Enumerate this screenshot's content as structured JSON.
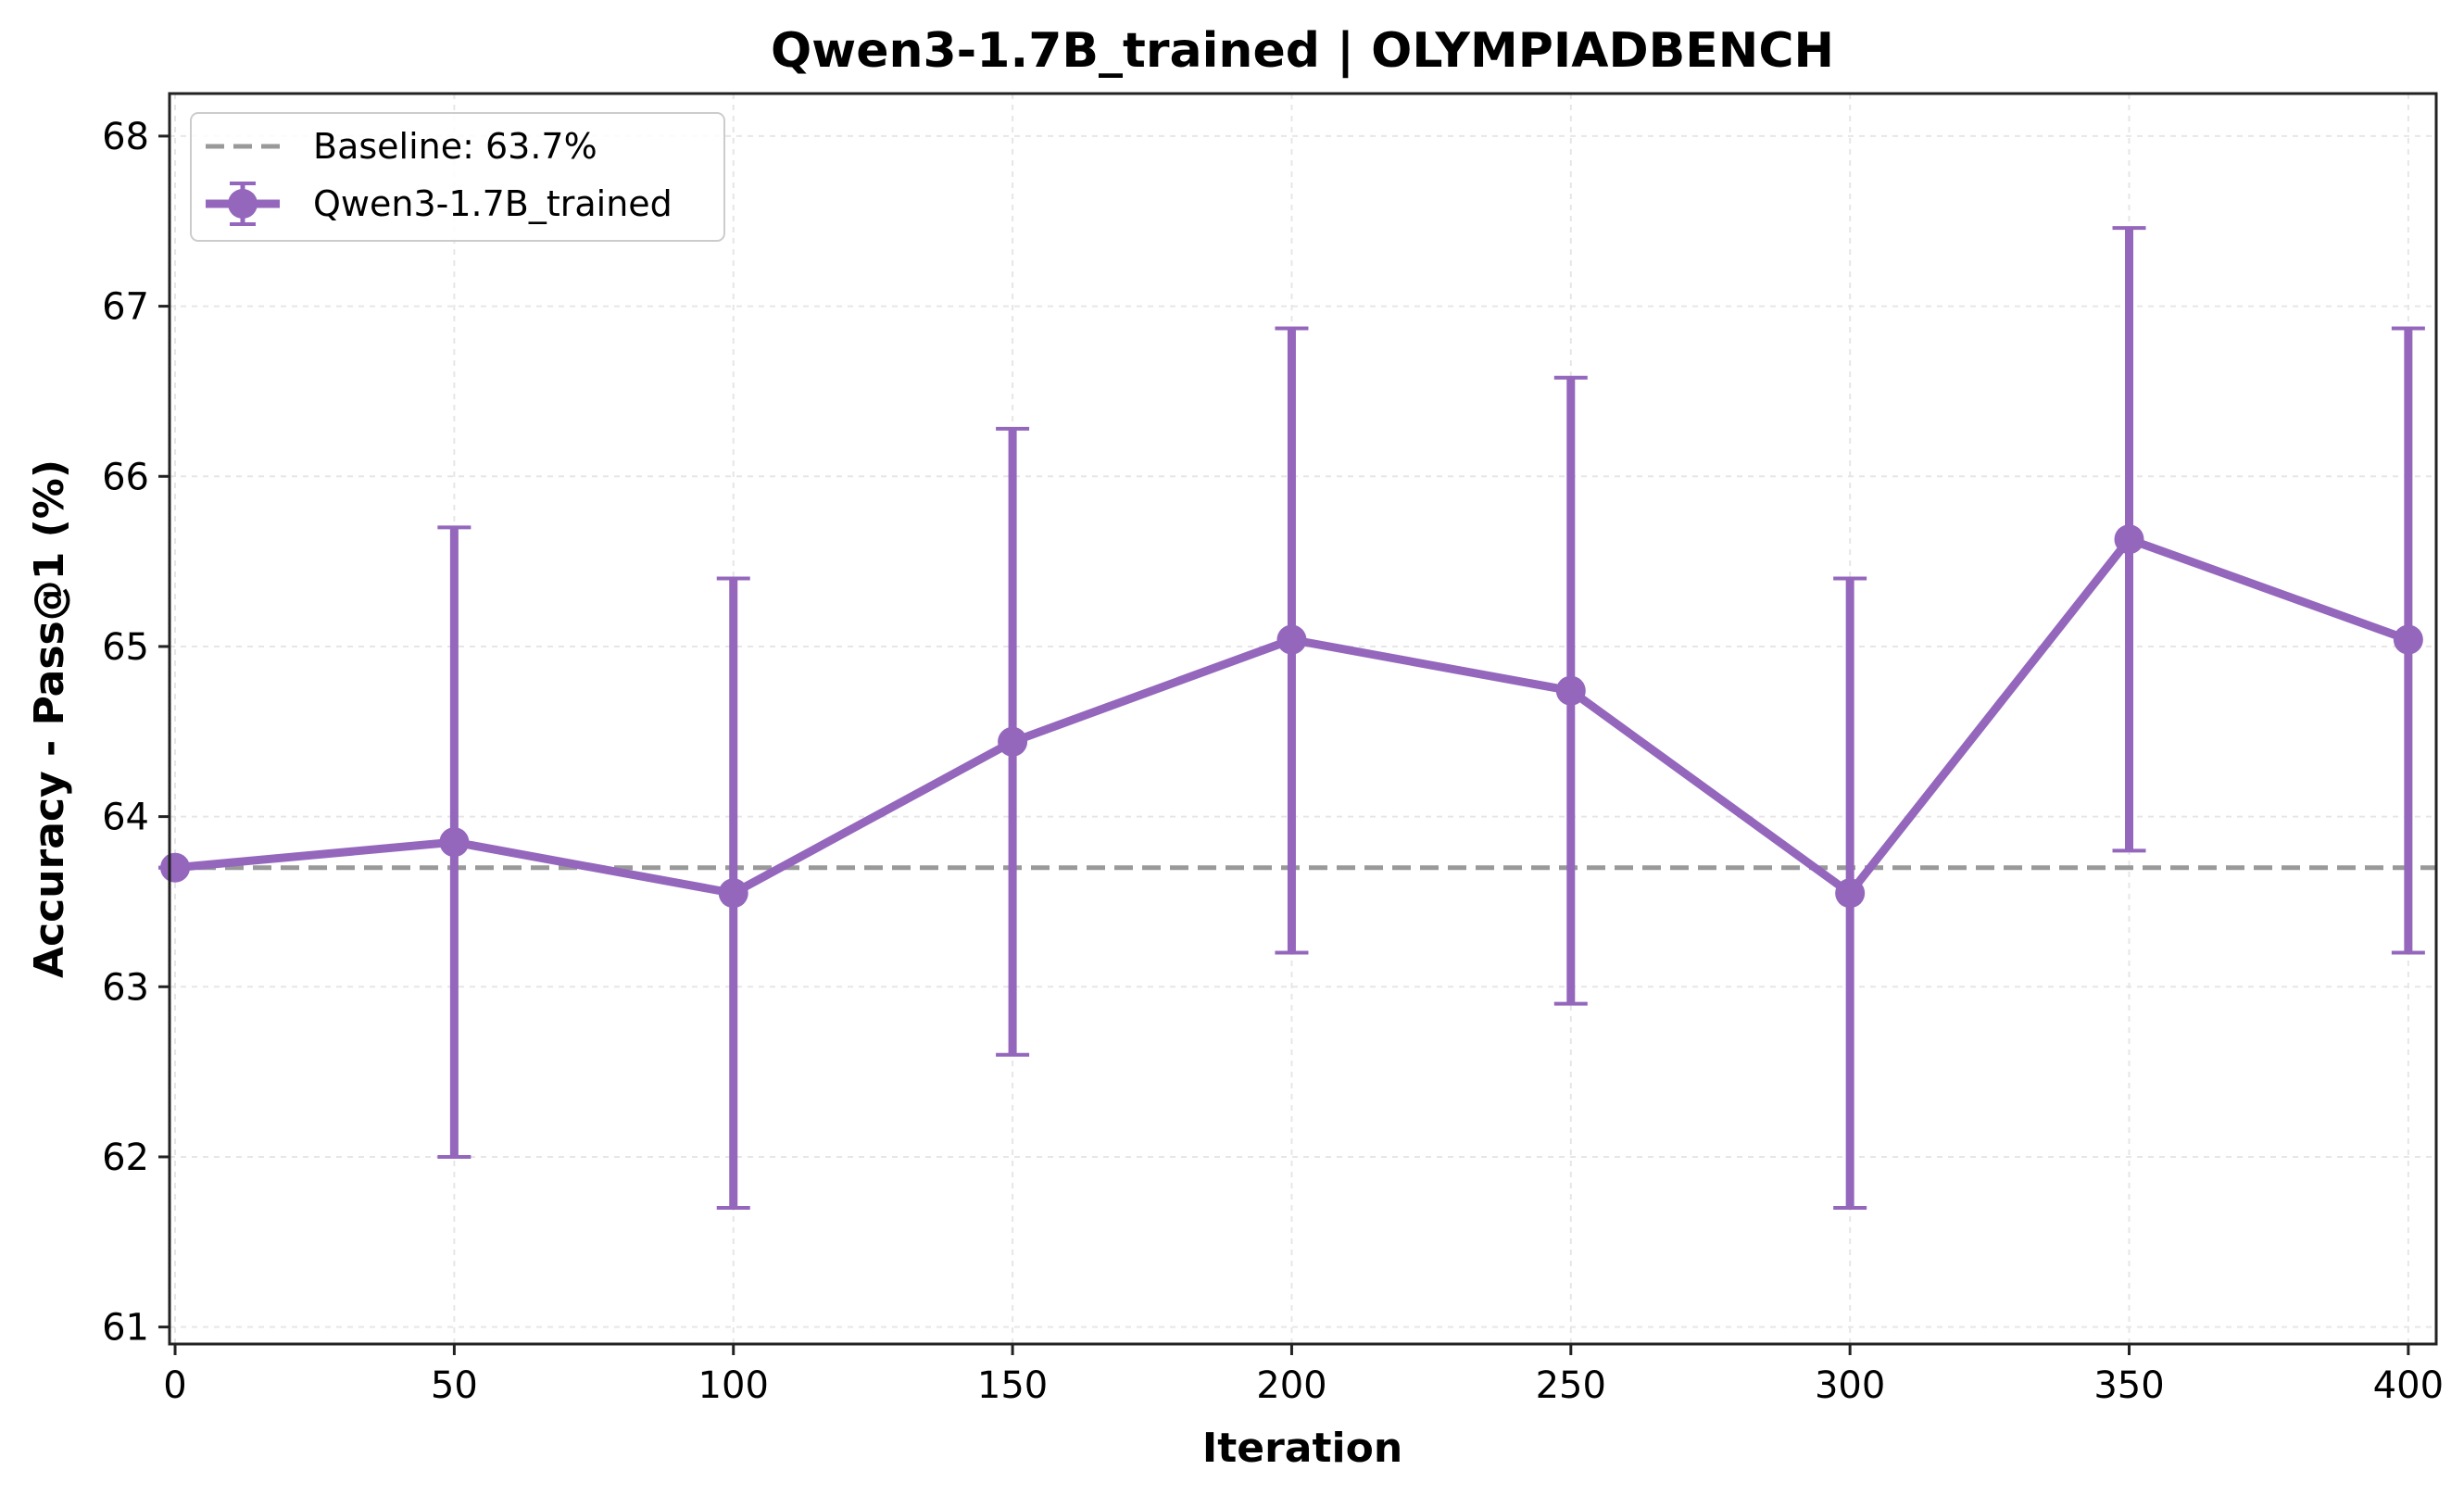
{
  "chart_data": {
    "type": "line",
    "title": "Qwen3-1.7B_trained | OLYMPIADBENCH",
    "xlabel": "Iteration",
    "ylabel": "Accuracy - Pass@1 (%)",
    "xlim": [
      -1,
      405
    ],
    "ylim": [
      60.9,
      68.25
    ],
    "xticks": [
      0,
      50,
      100,
      150,
      200,
      250,
      300,
      350,
      400
    ],
    "yticks": [
      61,
      62,
      63,
      64,
      65,
      66,
      67,
      68
    ],
    "grid": true,
    "legend_position": "upper-left",
    "baseline": {
      "label": "Baseline: 63.7%",
      "value": 63.7,
      "color": "#999999"
    },
    "series": [
      {
        "name": "Qwen3-1.7B_trained",
        "color": "#9467bd",
        "x": [
          0,
          50,
          100,
          150,
          200,
          250,
          300,
          350,
          400
        ],
        "y": [
          63.7,
          63.85,
          63.55,
          64.44,
          65.04,
          64.74,
          63.55,
          65.63,
          65.04
        ],
        "error_lower": [
          63.7,
          62.0,
          61.7,
          62.6,
          63.2,
          62.9,
          61.7,
          63.8,
          63.2
        ],
        "error_upper": [
          63.7,
          65.7,
          65.4,
          66.28,
          66.87,
          66.58,
          65.4,
          67.46,
          66.87
        ]
      }
    ]
  }
}
